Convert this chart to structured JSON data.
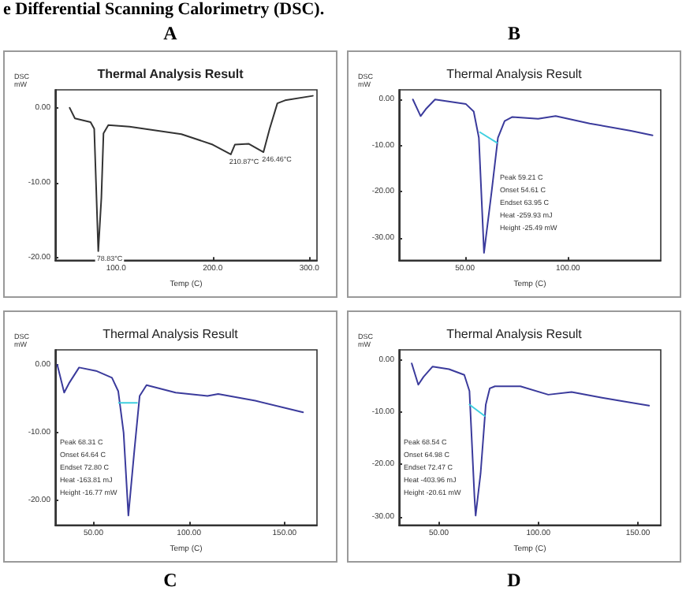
{
  "chart_data": [
    {
      "type": "line",
      "title": "Thermal Analysis Result",
      "subtitle": "A",
      "xlabel": "Temp (C)",
      "ylabel": "DSC\nmW",
      "grid": false,
      "marker": "none",
      "xlim": [
        37,
        308
      ],
      "ylim": [
        -20.3,
        2.4
      ],
      "xticks": [
        {
          "value": 100,
          "label": "100.0"
        },
        {
          "value": 200,
          "label": "200.0"
        },
        {
          "value": 300,
          "label": "300.0"
        }
      ],
      "yticks": [
        {
          "value": 0,
          "label": "0.00"
        },
        {
          "value": -10,
          "label": "-10.00"
        },
        {
          "value": -20,
          "label": "-20.00"
        }
      ],
      "series": [
        {
          "color": "#333333",
          "x": [
            52,
            57.4,
            73.6,
            77.4,
            81.6,
            84.8,
            87,
            92,
            114,
            167.6,
            200,
            218.8,
            223,
            237.5,
            252.6,
            259,
            267,
            275,
            303.7
          ],
          "values": [
            0,
            -1.4,
            -1.9,
            -2.8,
            -19.1,
            -12,
            -3.4,
            -2.3,
            -2.5,
            -3.5,
            -4.9,
            -6.2,
            -4.9,
            -4.8,
            -5.9,
            -2.8,
            0.6,
            1.0,
            1.6
          ]
        }
      ],
      "annotations": [
        "e Differential Scanning Calorimetry (DSC).",
        {
          "text": "78.83°C",
          "x": 81.6,
          "y": -19.1
        },
        {
          "text": "210.87°C",
          "x": 218.8,
          "y": -6.2
        },
        {
          "text": "246.46°C",
          "x": 252.6,
          "y": -5.9
        }
      ]
    },
    {
      "type": "line",
      "title": "Thermal Analysis Result",
      "subtitle": "B",
      "xlabel": "Temp (C)",
      "ylabel": "DSC\nmW",
      "grid": false,
      "marker": "none",
      "xlim": [
        18,
        145
      ],
      "ylim": [
        -34.9,
        2.1
      ],
      "xticks": [
        {
          "value": 50,
          "label": "50.00"
        },
        {
          "value": 100,
          "label": "100.00"
        }
      ],
      "yticks": [
        {
          "value": 0,
          "label": "0.00"
        },
        {
          "value": -10,
          "label": "-10.00"
        },
        {
          "value": -20,
          "label": "-20.00"
        },
        {
          "value": -30,
          "label": "-30.00"
        }
      ],
      "series": [
        {
          "color": "#3b3b9c",
          "x": [
            24.75,
            28.5,
            31,
            35.5,
            50.5,
            54.25,
            56.75,
            59.25,
            63,
            66,
            69.25,
            73,
            85.5,
            94,
            110.5,
            130.5,
            141
          ],
          "values": [
            0,
            -3.6,
            -2.1,
            0,
            -1.0,
            -2.6,
            -8.3,
            -33.3,
            -19.8,
            -8.3,
            -4.7,
            -3.8,
            -4.2,
            -3.6,
            -5.2,
            -6.8,
            -7.8
          ]
        },
        {
          "color": "#40d0e0",
          "x": [
            57.25,
            65.5
          ],
          "values": [
            -7.1,
            -9.4
          ]
        }
      ],
      "annotations": [
        "Peak 59.21 C",
        "Onset 54.61 C",
        "Endset 63.95 C",
        "Heat -259.93 mJ",
        "Height -25.49 mW"
      ]
    },
    {
      "type": "line",
      "title": "Thermal Analysis Result",
      "subtitle": "C",
      "xlabel": "Temp (C)",
      "ylabel": "DSC\nmW",
      "grid": false,
      "marker": "none",
      "xlim": [
        30,
        167
      ],
      "ylim": [
        -23.6,
        2.2
      ],
      "xticks": [
        {
          "value": 50,
          "label": "50.00"
        },
        {
          "value": 100,
          "label": "100.00"
        },
        {
          "value": 150,
          "label": "150.00"
        }
      ],
      "yticks": [
        {
          "value": 0,
          "label": "0.00"
        },
        {
          "value": -10,
          "label": "-10.00"
        },
        {
          "value": -20,
          "label": "-20.00"
        }
      ],
      "series": [
        {
          "color": "#3b3b9c",
          "x": [
            31.1,
            34.7,
            37.5,
            42.5,
            51.4,
            59.7,
            63,
            65.8,
            68.3,
            71.4,
            74.2,
            77.8,
            93,
            109.7,
            115.3,
            134.7,
            159.7
          ],
          "values": [
            0,
            -4.1,
            -2.6,
            -0.4,
            -0.9,
            -1.9,
            -3.9,
            -10,
            -22.2,
            -12.7,
            -4.6,
            -3.0,
            -4.1,
            -4.6,
            -4.3,
            -5.3,
            -7.0
          ]
        },
        {
          "color": "#40d0e0",
          "x": [
            63.3,
            72.8
          ],
          "values": [
            -5.6,
            -5.6
          ]
        }
      ],
      "annotations": [
        "Peak 68.31 C",
        "Onset 64.64 C",
        "Endset 72.80 C",
        "Heat -163.81 mJ",
        "Height -16.77 mW"
      ]
    },
    {
      "type": "line",
      "title": "Thermal Analysis Result",
      "subtitle": "D",
      "xlabel": "Temp (C)",
      "ylabel": "DSC\nmW",
      "grid": false,
      "marker": "none",
      "xlim": [
        30,
        161.5
      ],
      "ylim": [
        -31.6,
        2
      ],
      "xticks": [
        {
          "value": 50,
          "label": "50.00"
        },
        {
          "value": 100,
          "label": "100.00"
        },
        {
          "value": 150,
          "label": "150.00"
        }
      ],
      "yticks": [
        {
          "value": 0,
          "label": "0.00"
        },
        {
          "value": -10,
          "label": "-10.00"
        },
        {
          "value": -20,
          "label": "-20.00"
        },
        {
          "value": -30,
          "label": "-30.00"
        }
      ],
      "series": [
        {
          "color": "#3b3b9c",
          "x": [
            36.4,
            39.7,
            42.3,
            46.9,
            55.1,
            62.8,
            65.4,
            67.9,
            68.5,
            71,
            73.6,
            75.6,
            78.2,
            91,
            105,
            116.7,
            132,
            155.6
          ],
          "values": [
            -0.6,
            -4.7,
            -3.2,
            -1.2,
            -1.7,
            -2.8,
            -5.9,
            -26.1,
            -29.8,
            -21.7,
            -8.5,
            -5.4,
            -5.0,
            -5.0,
            -6.6,
            -6.1,
            -7.2,
            -8.7
          ]
        },
        {
          "color": "#40d0e0",
          "x": [
            65.4,
            73.1
          ],
          "values": [
            -8.5,
            -10.7
          ]
        }
      ],
      "annotations": [
        "Peak 68.54 C",
        "Onset 64.98 C",
        "Endset 72.47 C",
        "Heat -403.96 mJ",
        "Height -20.61 mW"
      ]
    }
  ]
}
